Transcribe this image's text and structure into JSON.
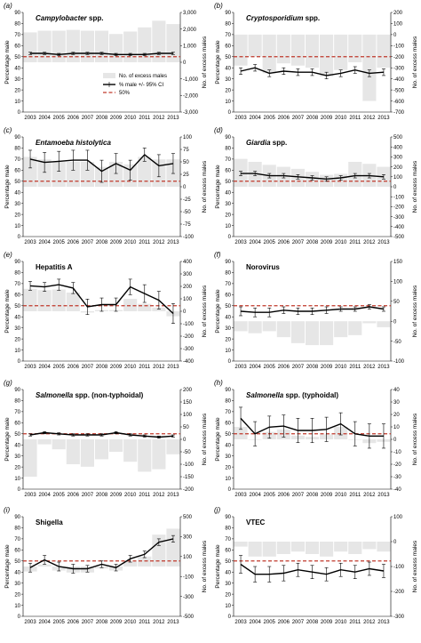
{
  "figure": {
    "legend": {
      "bar_label": "No. of excess males",
      "line_label": "% male +/- 95% CI",
      "ref_label": "50%"
    },
    "axis_label_left": "Percentage male",
    "axis_label_right": "No. of excess males",
    "colors": {
      "bar": "#e6e6e6",
      "line": "#000000",
      "ref": "#c0392b"
    }
  },
  "chart_data": [
    {
      "type": "bar+line",
      "panel_label": "(a)",
      "title": "Campylobacter spp.",
      "title_italic": "Campylobacter",
      "title_rest": " spp.",
      "categories": [
        "2003",
        "2004",
        "2005",
        "2006",
        "2007",
        "2008",
        "2009",
        "2010",
        "2011",
        "2012",
        "2013"
      ],
      "pct_male": [
        53,
        53,
        52,
        53,
        53,
        53,
        52,
        52,
        52,
        53,
        53
      ],
      "ci": [
        1,
        1,
        1,
        1,
        1,
        1,
        1,
        1,
        1,
        1,
        1
      ],
      "excess": [
        1800,
        1900,
        1900,
        1950,
        1900,
        1900,
        1700,
        1850,
        2100,
        2500,
        2300
      ],
      "ylim": [
        0,
        90
      ],
      "y2lim": [
        -3000,
        3000
      ],
      "y2ticks": [
        -3000,
        -2000,
        -1000,
        0,
        1000,
        2000,
        3000
      ],
      "y2ticklabels": [
        "-3,000",
        "-2,000",
        "-1,000",
        "0",
        "1,000",
        "2,000",
        "3,000"
      ],
      "reference": 50,
      "show_legend": true
    },
    {
      "type": "bar+line",
      "panel_label": "(b)",
      "title": "Cryptosporidium spp.",
      "title_italic": "Cryptosporidium",
      "title_rest": " spp.",
      "categories": [
        "2003",
        "2004",
        "2005",
        "2006",
        "2007",
        "2008",
        "2009",
        "2010",
        "2011",
        "2012",
        "2013"
      ],
      "pct_male": [
        37,
        40,
        35,
        37,
        36,
        36,
        33,
        35,
        38,
        35,
        36
      ],
      "ci": [
        3,
        3,
        3,
        3,
        3,
        3,
        3,
        3,
        3,
        3,
        3
      ],
      "excess": [
        -280,
        -200,
        -350,
        -260,
        -280,
        -300,
        -380,
        -320,
        -250,
        -600,
        -300
      ],
      "ylim": [
        0,
        90
      ],
      "y2lim": [
        -700,
        200
      ],
      "y2ticks": [
        -700,
        -600,
        -500,
        -400,
        -300,
        -200,
        -100,
        0,
        100,
        200
      ],
      "y2ticklabels": [
        "-700",
        "-600",
        "-500",
        "-400",
        "-300",
        "-200",
        "-100",
        "0",
        "100",
        "200"
      ],
      "reference": 50,
      "show_legend": false
    },
    {
      "type": "bar+line",
      "panel_label": "(c)",
      "title": "Entamoeba histolytica",
      "title_italic": "Entamoeba histolytica",
      "title_rest": "",
      "categories": [
        "2003",
        "2004",
        "2005",
        "2006",
        "2007",
        "2008",
        "2009",
        "2010",
        "2011",
        "2012",
        "2013"
      ],
      "pct_male": [
        70,
        67,
        68,
        69,
        69,
        59,
        66,
        60,
        74,
        64,
        66
      ],
      "ci": [
        8,
        9,
        9,
        9,
        9,
        10,
        9,
        9,
        6,
        10,
        9
      ],
      "excess": [
        60,
        55,
        50,
        50,
        50,
        40,
        50,
        45,
        60,
        55,
        55
      ],
      "ylim": [
        0,
        90
      ],
      "y2lim": [
        -100,
        100
      ],
      "y2ticks": [
        -100,
        -75,
        -50,
        -25,
        0,
        25,
        50,
        75,
        100
      ],
      "y2ticklabels": [
        "-100",
        "-75",
        "-50",
        "-25",
        "0",
        "25",
        "50",
        "75",
        "100"
      ],
      "reference": 50,
      "show_legend": false
    },
    {
      "type": "bar+line",
      "panel_label": "(d)",
      "title": "Giardia spp.",
      "title_italic": "Giardia",
      "title_rest": " spp.",
      "categories": [
        "2003",
        "2004",
        "2005",
        "2006",
        "2007",
        "2008",
        "2009",
        "2010",
        "2011",
        "2012",
        "2013"
      ],
      "pct_male": [
        57,
        57,
        55,
        55,
        54,
        53,
        52,
        53,
        55,
        55,
        54
      ],
      "ci": [
        2,
        2,
        2,
        2,
        2,
        2,
        2,
        2,
        2,
        2,
        2
      ],
      "excess": [
        280,
        250,
        220,
        200,
        180,
        150,
        120,
        130,
        250,
        230,
        200
      ],
      "ylim": [
        0,
        90
      ],
      "y2lim": [
        -500,
        500
      ],
      "y2ticks": [
        -500,
        -400,
        -300,
        -200,
        -100,
        0,
        100,
        200,
        300,
        400,
        500
      ],
      "y2ticklabels": [
        "-500",
        "-400",
        "-300",
        "-200",
        "-100",
        "0",
        "100",
        "200",
        "300",
        "400",
        "500"
      ],
      "reference": 50,
      "show_legend": false
    },
    {
      "type": "bar+line",
      "panel_label": "(e)",
      "title": "Hepatitis A",
      "title_italic": "",
      "title_rest": "Hepatitis A",
      "categories": [
        "2003",
        "2004",
        "2005",
        "2006",
        "2007",
        "2008",
        "2009",
        "2010",
        "2011",
        "2012",
        "2013"
      ],
      "pct_male": [
        68,
        67,
        69,
        66,
        49,
        51,
        51,
        67,
        61,
        55,
        43
      ],
      "ci": [
        4,
        4,
        5,
        5,
        7,
        6,
        6,
        7,
        8,
        8,
        9
      ],
      "excess": [
        180,
        170,
        175,
        150,
        -10,
        10,
        10,
        100,
        60,
        30,
        -40
      ],
      "ylim": [
        0,
        90
      ],
      "y2lim": [
        -400,
        400
      ],
      "y2ticks": [
        -400,
        -300,
        -200,
        -100,
        0,
        100,
        200,
        300,
        400
      ],
      "y2ticklabels": [
        "-400",
        "-300",
        "-200",
        "-100",
        "0",
        "100",
        "200",
        "300",
        "400"
      ],
      "reference": 50,
      "show_legend": false
    },
    {
      "type": "bar+line",
      "panel_label": "(f)",
      "title": "Norovirus",
      "title_italic": "",
      "title_rest": "Norovirus",
      "categories": [
        "2003",
        "2004",
        "2005",
        "2006",
        "2007",
        "2008",
        "2009",
        "2010",
        "2011",
        "2012",
        "2013"
      ],
      "pct_male": [
        45,
        44,
        44,
        46,
        45,
        45,
        46,
        47,
        47,
        49,
        47
      ],
      "ci": [
        4,
        4,
        4,
        3,
        3,
        3,
        3,
        2,
        2,
        2,
        2
      ],
      "excess": [
        -25,
        -30,
        -25,
        -40,
        -55,
        -60,
        -60,
        -40,
        -35,
        -5,
        -15
      ],
      "ylim": [
        0,
        90
      ],
      "y2lim": [
        -100,
        150
      ],
      "y2ticks": [
        -100,
        -50,
        0,
        50,
        100,
        150
      ],
      "y2ticklabels": [
        "-100",
        "-50",
        "0",
        "50",
        "100",
        "150"
      ],
      "reference": 50,
      "show_legend": false
    },
    {
      "type": "bar+line",
      "panel_label": "(g)",
      "title": "Salmonella spp. (non-typhoidal)",
      "title_italic": "Salmonella",
      "title_rest": " spp. (non-typhoidal)",
      "categories": [
        "2003",
        "2004",
        "2005",
        "2006",
        "2007",
        "2008",
        "2009",
        "2010",
        "2011",
        "2012",
        "2013"
      ],
      "pct_male": [
        49,
        51,
        50,
        49,
        49,
        49,
        51,
        49,
        48,
        47,
        48
      ],
      "ci": [
        1,
        1,
        1,
        1,
        1,
        1,
        1,
        1,
        1,
        1,
        1
      ],
      "excess": [
        -150,
        -20,
        -40,
        -100,
        -110,
        -80,
        -50,
        -90,
        -130,
        -120,
        -60
      ],
      "ylim": [
        0,
        90
      ],
      "y2lim": [
        -200,
        200
      ],
      "y2ticks": [
        -200,
        -150,
        -100,
        -50,
        0,
        50,
        100,
        150,
        200
      ],
      "y2ticklabels": [
        "-200",
        "-150",
        "-100",
        "-50",
        "0",
        "50",
        "100",
        "150",
        "200"
      ],
      "reference": 50,
      "show_legend": false
    },
    {
      "type": "bar+line",
      "panel_label": "(h)",
      "title": "Salmonella spp. (typhoidal)",
      "title_italic": "Salmonella",
      "title_rest": " spp. (typhoidal)",
      "categories": [
        "2003",
        "2004",
        "2005",
        "2006",
        "2007",
        "2008",
        "2009",
        "2010",
        "2011",
        "2012",
        "2013"
      ],
      "pct_male": [
        64,
        50,
        56,
        57,
        53,
        53,
        54,
        59,
        50,
        48,
        48
      ],
      "ci": [
        10,
        11,
        10,
        10,
        11,
        11,
        11,
        10,
        11,
        11,
        11
      ],
      "excess": [
        10,
        0,
        6,
        8,
        3,
        2,
        4,
        10,
        0,
        -3,
        -2
      ],
      "ylim": [
        0,
        90
      ],
      "y2lim": [
        -40,
        40
      ],
      "y2ticks": [
        -40,
        -30,
        -20,
        -10,
        0,
        10,
        20,
        30,
        40
      ],
      "y2ticklabels": [
        "-40",
        "-30",
        "-20",
        "-10",
        "0",
        "10",
        "20",
        "30",
        "40"
      ],
      "reference": 50,
      "show_legend": false
    },
    {
      "type": "bar+line",
      "panel_label": "(i)",
      "title": "Shigella",
      "title_italic": "",
      "title_rest": "Shigella",
      "categories": [
        "2003",
        "2004",
        "2005",
        "2006",
        "2007",
        "2008",
        "2009",
        "2010",
        "2011",
        "2012",
        "2013"
      ],
      "pct_male": [
        44,
        51,
        45,
        43,
        43,
        47,
        44,
        52,
        56,
        67,
        70
      ],
      "ci": [
        4,
        4,
        4,
        4,
        3,
        3,
        3,
        3,
        3,
        3,
        3
      ],
      "excess": [
        -50,
        20,
        -40,
        -60,
        -60,
        -20,
        -40,
        50,
        100,
        320,
        380
      ],
      "ylim": [
        0,
        90
      ],
      "y2lim": [
        -500,
        500
      ],
      "y2ticks": [
        -500,
        -300,
        -100,
        100,
        300,
        500
      ],
      "y2ticklabels": [
        "-500",
        "-300",
        "-100",
        "100",
        "300",
        "500"
      ],
      "reference": 50,
      "show_legend": false
    },
    {
      "type": "bar+line",
      "panel_label": "(j)",
      "title": "VTEC",
      "title_italic": "",
      "title_rest": "VTEC",
      "categories": [
        "2003",
        "2004",
        "2005",
        "2006",
        "2007",
        "2008",
        "2009",
        "2010",
        "2011",
        "2012",
        "2013"
      ],
      "pct_male": [
        47,
        38,
        38,
        39,
        42,
        40,
        38,
        42,
        40,
        43,
        41
      ],
      "ci": [
        8,
        7,
        7,
        7,
        6,
        6,
        6,
        6,
        6,
        6,
        6
      ],
      "excess": [
        -20,
        -60,
        -60,
        -50,
        -40,
        -50,
        -60,
        -40,
        -50,
        -30,
        -40
      ],
      "ylim": [
        0,
        90
      ],
      "y2lim": [
        -300,
        100
      ],
      "y2ticks": [
        -300,
        -200,
        -100,
        0,
        100
      ],
      "y2ticklabels": [
        "-300",
        "-200",
        "-100",
        "0",
        "100"
      ],
      "reference": 50,
      "show_legend": false
    }
  ]
}
